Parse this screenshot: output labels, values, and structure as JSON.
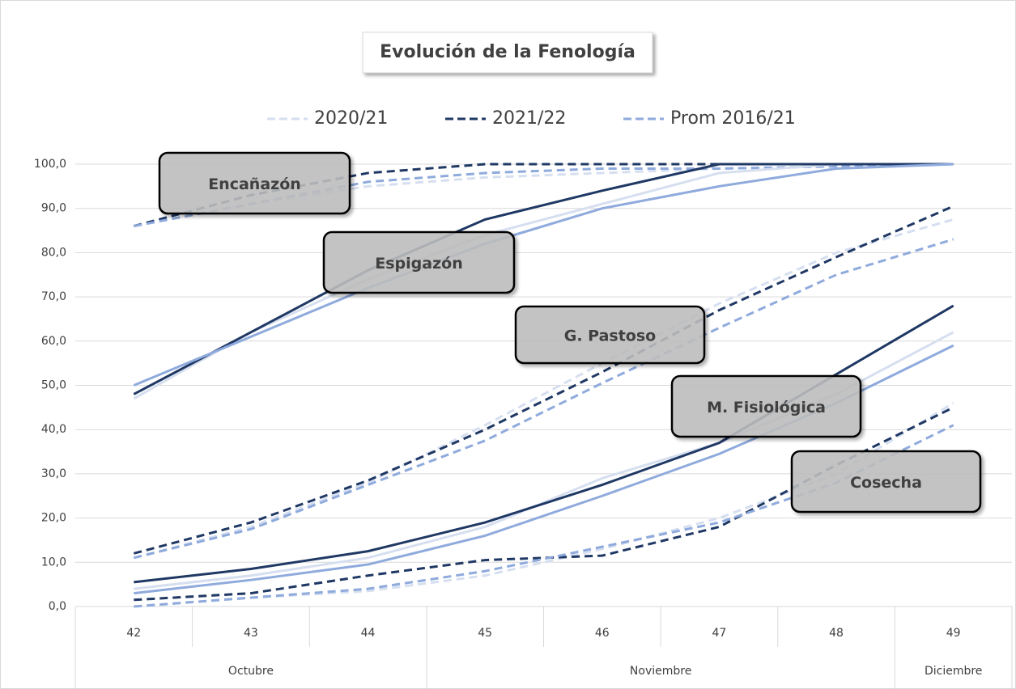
{
  "chart_data": {
    "type": "line",
    "title": "Evolución  de la Fenología",
    "categories": [
      "42",
      "43",
      "44",
      "45",
      "46",
      "47",
      "48",
      "49"
    ],
    "groups": [
      {
        "label": "Octubre",
        "span": 3
      },
      {
        "label": "Noviembre",
        "span": 4
      },
      {
        "label": "Diciembre",
        "span": 1
      }
    ],
    "seasons": [
      {
        "name": "2020/21",
        "color": "#d6dff0"
      },
      {
        "name": "2021/22",
        "color": "#1f3864"
      },
      {
        "name": "Prom 2016/21",
        "color": "#8faadc"
      }
    ],
    "stages": [
      {
        "label": "Encañazón",
        "dashed": true,
        "series": [
          [
            86,
            91,
            95,
            97,
            98,
            99,
            99.5,
            100
          ],
          [
            86,
            93,
            98,
            100,
            100,
            100,
            100,
            100
          ],
          [
            86,
            91,
            96,
            98,
            99,
            99,
            99.5,
            100
          ]
        ]
      },
      {
        "label": "Espigazón",
        "dashed": false,
        "series": [
          [
            47,
            62,
            74,
            84,
            91,
            98,
            100,
            100
          ],
          [
            48,
            62,
            76,
            87.5,
            94,
            100,
            100,
            100
          ],
          [
            50,
            61,
            72,
            82,
            90,
            95,
            99,
            100
          ]
        ]
      },
      {
        "label": "G. Pastoso",
        "dashed": true,
        "series": [
          [
            11,
            18,
            28,
            41,
            55,
            68.5,
            80,
            87.5
          ],
          [
            12,
            19,
            28.5,
            40,
            53,
            67,
            79,
            90.5
          ],
          [
            11,
            17.5,
            27.5,
            37.5,
            50.5,
            63,
            75,
            83
          ]
        ]
      },
      {
        "label": "M. Fisiológica",
        "dashed": false,
        "series": [
          [
            4,
            7,
            11,
            18,
            29,
            37,
            48,
            62
          ],
          [
            5.5,
            8.5,
            12.5,
            19,
            27.5,
            37,
            52.5,
            68
          ],
          [
            3,
            6,
            9.5,
            16,
            25,
            34.5,
            46,
            59
          ]
        ]
      },
      {
        "label": "Cosecha",
        "dashed": true,
        "series": [
          [
            0,
            2,
            3.5,
            7,
            13,
            20,
            30,
            46
          ],
          [
            1.5,
            3,
            7,
            10.5,
            11.5,
            18,
            32,
            45
          ],
          [
            0,
            2,
            4,
            8,
            13.5,
            19,
            28,
            41
          ]
        ]
      }
    ],
    "ylim": [
      0,
      100
    ],
    "yticks": [
      {
        "value": 0,
        "label": "0,0"
      },
      {
        "value": 10,
        "label": "10,0"
      },
      {
        "value": 20,
        "label": "20,0"
      },
      {
        "value": 30,
        "label": "30,0"
      },
      {
        "value": 40,
        "label": "40,0"
      },
      {
        "value": 50,
        "label": "50,0"
      },
      {
        "value": 60,
        "label": "60,0"
      },
      {
        "value": 70,
        "label": "70,0"
      },
      {
        "value": 80,
        "label": "80,0"
      },
      {
        "value": 90,
        "label": "90,0"
      },
      {
        "value": 100,
        "label": "100,0"
      }
    ],
    "grid": true
  }
}
